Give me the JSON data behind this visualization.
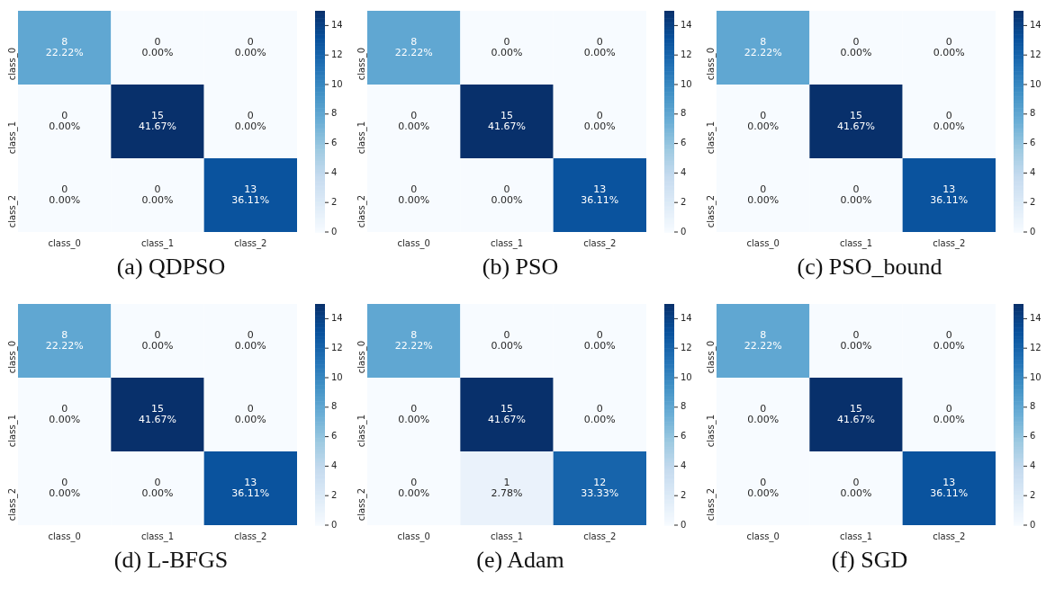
{
  "chart_data": [
    {
      "type": "heatmap",
      "title": "(a) QDPSO",
      "categories": [
        "class_0",
        "class_1",
        "class_2"
      ],
      "y_categories": [
        "class_0",
        "class_1",
        "class_2"
      ],
      "cells": [
        [
          8,
          0,
          0
        ],
        [
          0,
          15,
          0
        ],
        [
          0,
          0,
          13
        ]
      ],
      "cell_labels": [
        [
          "8\n22.22%",
          "0\n0.00%",
          "0\n0.00%"
        ],
        [
          "0\n0.00%",
          "15\n41.67%",
          "0\n0.00%"
        ],
        [
          "0\n0.00%",
          "0\n0.00%",
          "13\n36.11%"
        ]
      ],
      "clim": [
        0,
        15
      ],
      "cticks": [
        0,
        2,
        4,
        6,
        8,
        10,
        12,
        14
      ]
    },
    {
      "type": "heatmap",
      "title": "(b) PSO",
      "categories": [
        "class_0",
        "class_1",
        "class_2"
      ],
      "y_categories": [
        "class_0",
        "class_1",
        "class_2"
      ],
      "cells": [
        [
          8,
          0,
          0
        ],
        [
          0,
          15,
          0
        ],
        [
          0,
          0,
          13
        ]
      ],
      "cell_labels": [
        [
          "8\n22.22%",
          "0\n0.00%",
          "0\n0.00%"
        ],
        [
          "0\n0.00%",
          "15\n41.67%",
          "0\n0.00%"
        ],
        [
          "0\n0.00%",
          "0\n0.00%",
          "13\n36.11%"
        ]
      ],
      "clim": [
        0,
        15
      ],
      "cticks": [
        0,
        2,
        4,
        6,
        8,
        10,
        12,
        14
      ]
    },
    {
      "type": "heatmap",
      "title": "(c) PSO_bound",
      "categories": [
        "class_0",
        "class_1",
        "class_2"
      ],
      "y_categories": [
        "class_0",
        "class_1",
        "class_2"
      ],
      "cells": [
        [
          8,
          0,
          0
        ],
        [
          0,
          15,
          0
        ],
        [
          0,
          0,
          13
        ]
      ],
      "cell_labels": [
        [
          "8\n22.22%",
          "0\n0.00%",
          "0\n0.00%"
        ],
        [
          "0\n0.00%",
          "15\n41.67%",
          "0\n0.00%"
        ],
        [
          "0\n0.00%",
          "0\n0.00%",
          "13\n36.11%"
        ]
      ],
      "clim": [
        0,
        15
      ],
      "cticks": [
        0,
        2,
        4,
        6,
        8,
        10,
        12,
        14
      ]
    },
    {
      "type": "heatmap",
      "title": "(d) L-BFGS",
      "categories": [
        "class_0",
        "class_1",
        "class_2"
      ],
      "y_categories": [
        "class_0",
        "class_1",
        "class_2"
      ],
      "cells": [
        [
          8,
          0,
          0
        ],
        [
          0,
          15,
          0
        ],
        [
          0,
          0,
          13
        ]
      ],
      "cell_labels": [
        [
          "8\n22.22%",
          "0\n0.00%",
          "0\n0.00%"
        ],
        [
          "0\n0.00%",
          "15\n41.67%",
          "0\n0.00%"
        ],
        [
          "0\n0.00%",
          "0\n0.00%",
          "13\n36.11%"
        ]
      ],
      "clim": [
        0,
        15
      ],
      "cticks": [
        0,
        2,
        4,
        6,
        8,
        10,
        12,
        14
      ]
    },
    {
      "type": "heatmap",
      "title": "(e) Adam",
      "categories": [
        "class_0",
        "class_1",
        "class_2"
      ],
      "y_categories": [
        "class_0",
        "class_1",
        "class_2"
      ],
      "cells": [
        [
          8,
          0,
          0
        ],
        [
          0,
          15,
          0
        ],
        [
          0,
          1,
          12
        ]
      ],
      "cell_labels": [
        [
          "8\n22.22%",
          "0\n0.00%",
          "0\n0.00%"
        ],
        [
          "0\n0.00%",
          "15\n41.67%",
          "0\n0.00%"
        ],
        [
          "0\n0.00%",
          "1\n2.78%",
          "12\n33.33%"
        ]
      ],
      "clim": [
        0,
        15
      ],
      "cticks": [
        0,
        2,
        4,
        6,
        8,
        10,
        12,
        14
      ]
    },
    {
      "type": "heatmap",
      "title": "(f) SGD",
      "categories": [
        "class_0",
        "class_1",
        "class_2"
      ],
      "y_categories": [
        "class_0",
        "class_1",
        "class_2"
      ],
      "cells": [
        [
          8,
          0,
          0
        ],
        [
          0,
          15,
          0
        ],
        [
          0,
          0,
          13
        ]
      ],
      "cell_labels": [
        [
          "8\n22.22%",
          "0\n0.00%",
          "0\n0.00%"
        ],
        [
          "0\n0.00%",
          "15\n41.67%",
          "0\n0.00%"
        ],
        [
          "0\n0.00%",
          "0\n0.00%",
          "13\n36.11%"
        ]
      ],
      "clim": [
        0,
        15
      ],
      "cticks": [
        0,
        2,
        4,
        6,
        8,
        10,
        12,
        14
      ]
    }
  ]
}
